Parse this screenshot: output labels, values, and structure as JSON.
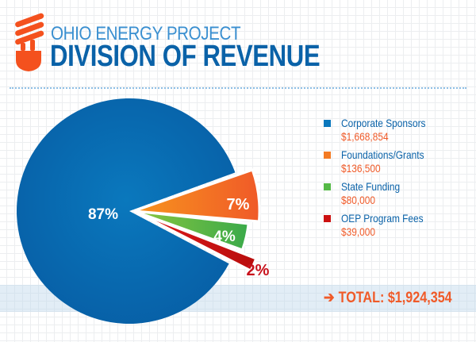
{
  "header": {
    "subtitle": "OHIO ENERGY PROJECT",
    "title": "DIVISION OF REVENUE",
    "logo_icon": "lightbulb-icon"
  },
  "colors": {
    "blue": "#0a64aa",
    "orange": "#f37a23",
    "green": "#55b947",
    "red": "#cc1111",
    "accent": "#f05a28"
  },
  "chart_data": {
    "type": "pie",
    "title": "DIVISION OF REVENUE",
    "slices": [
      {
        "name": "Corporate Sponsors",
        "value": 1668854,
        "value_label": "$1,668,854",
        "percent_label": "87%",
        "color": "#0a64aa",
        "exploded": false
      },
      {
        "name": "Foundations/Grants",
        "value": 136500,
        "value_label": "$136,500",
        "percent_label": "7%",
        "color": "#f37a23",
        "exploded": true
      },
      {
        "name": "State Funding",
        "value": 80000,
        "value_label": "$80,000",
        "percent_label": "4%",
        "color": "#55b947",
        "exploded": true
      },
      {
        "name": "OEP Program Fees",
        "value": 39000,
        "value_label": "$39,000",
        "percent_label": "2%",
        "color": "#cc1111",
        "exploded": true
      }
    ],
    "legend_position": "right",
    "total_label": "TOTAL: $1,924,354"
  }
}
